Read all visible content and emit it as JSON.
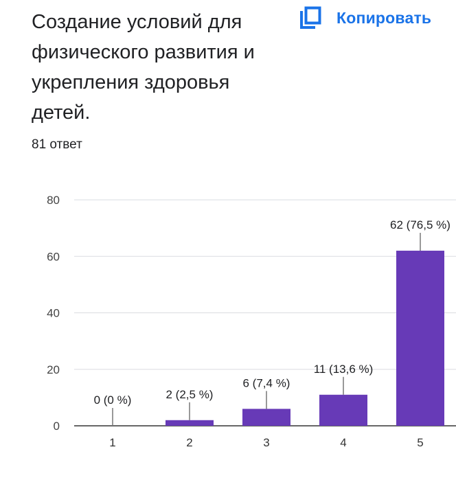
{
  "header": {
    "title": "Создание условий для физического развития и укрепления здоровья детей.",
    "copy_label": "Копировать",
    "copy_icon": "copy-icon",
    "accent_color": "#1a73e8"
  },
  "summary": {
    "responses": "81 ответ"
  },
  "chart_data": {
    "type": "bar",
    "categories": [
      "1",
      "2",
      "3",
      "4",
      "5"
    ],
    "values": [
      0,
      2,
      6,
      11,
      62
    ],
    "data_labels": [
      "0 (0 %)",
      "2 (2,5 %)",
      "6 (7,4 %)",
      "11 (13,6 %)",
      "62 (76,5 %)"
    ],
    "ylim": [
      0,
      80
    ],
    "yticks": [
      0,
      20,
      40,
      60,
      80
    ],
    "grid": true,
    "bar_color": "#673ab7"
  }
}
